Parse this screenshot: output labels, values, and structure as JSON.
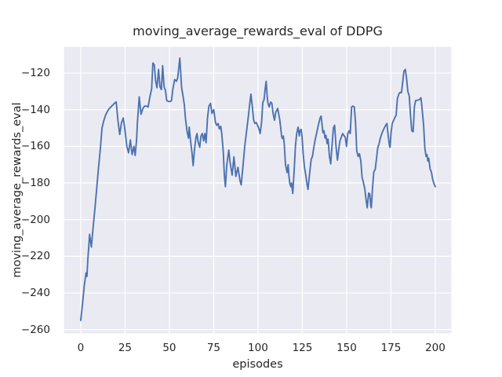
{
  "chart_data": {
    "type": "line",
    "title": "moving_average_rewards_eval of DDPG",
    "xlabel": "episodes",
    "ylabel": "moving_average_rewards_eval",
    "grid": true,
    "legend": "none",
    "plot_bg": "#eaeaf2",
    "grid_color": "#ffffff",
    "line_color": "#4c72b0",
    "text_color": "#262626",
    "xlim": [
      -9.7,
      209.3
    ],
    "ylim": [
      -262.3,
      -105.4
    ],
    "x_ticks": [
      0,
      25,
      50,
      75,
      100,
      125,
      150,
      175,
      200
    ],
    "x_tick_labels": [
      "0",
      "25",
      "50",
      "75",
      "100",
      "125",
      "150",
      "175",
      "200"
    ],
    "y_ticks": [
      -120,
      -140,
      -160,
      -180,
      -200,
      -220,
      -240,
      -260
    ],
    "y_tick_labels": [
      "−120",
      "−140",
      "−160",
      "−180",
      "−200",
      "−220",
      "−240",
      "−260"
    ],
    "series": [
      {
        "name": "moving_average_rewards_eval",
        "points": [
          [
            0,
            -255
          ],
          [
            1,
            -246
          ],
          [
            2,
            -236
          ],
          [
            3,
            -229
          ],
          [
            3.5,
            -231
          ],
          [
            4,
            -222
          ],
          [
            5,
            -208
          ],
          [
            6,
            -215
          ],
          [
            7,
            -204
          ],
          [
            8,
            -194
          ],
          [
            9,
            -183
          ],
          [
            10,
            -172
          ],
          [
            11,
            -162
          ],
          [
            12,
            -150
          ],
          [
            13,
            -146
          ],
          [
            14,
            -143
          ],
          [
            15,
            -141
          ],
          [
            16,
            -139.5
          ],
          [
            17,
            -138.5
          ],
          [
            18,
            -137.5
          ],
          [
            19,
            -136.5
          ],
          [
            20,
            -135.7
          ],
          [
            21,
            -146
          ],
          [
            22,
            -153.5
          ],
          [
            23,
            -147
          ],
          [
            24,
            -144.5
          ],
          [
            25,
            -151.5
          ],
          [
            26,
            -160
          ],
          [
            27,
            -163.5
          ],
          [
            28,
            -156.5
          ],
          [
            29,
            -164.5
          ],
          [
            30,
            -160
          ],
          [
            30.7,
            -165
          ],
          [
            31.5,
            -156.5
          ],
          [
            32,
            -146.5
          ],
          [
            33,
            -133
          ],
          [
            34,
            -142.5
          ],
          [
            35,
            -139.5
          ],
          [
            36,
            -138
          ],
          [
            37,
            -138
          ],
          [
            38,
            -138.5
          ],
          [
            39,
            -133
          ],
          [
            40,
            -128.5
          ],
          [
            40.7,
            -114.5
          ],
          [
            41.5,
            -115.5
          ],
          [
            42.2,
            -124
          ],
          [
            43,
            -128
          ],
          [
            43.9,
            -118
          ],
          [
            44.7,
            -127.5
          ],
          [
            45.5,
            -129
          ],
          [
            46.2,
            -116
          ],
          [
            47,
            -127.5
          ],
          [
            47.8,
            -129.5
          ],
          [
            48.5,
            -135
          ],
          [
            49.5,
            -135.5
          ],
          [
            50.5,
            -135.5
          ],
          [
            51.2,
            -135
          ],
          [
            52,
            -128.5
          ],
          [
            53,
            -123.5
          ],
          [
            54,
            -124.5
          ],
          [
            54.7,
            -122.5
          ],
          [
            55.9,
            -111.8
          ],
          [
            56.9,
            -128
          ],
          [
            57.7,
            -132.5
          ],
          [
            58.4,
            -137
          ],
          [
            59.1,
            -145
          ],
          [
            60,
            -152
          ],
          [
            60.8,
            -155.5
          ],
          [
            61.2,
            -149.5
          ],
          [
            62,
            -157.5
          ],
          [
            62.7,
            -163
          ],
          [
            63.4,
            -170.5
          ],
          [
            64.2,
            -161.5
          ],
          [
            65,
            -155
          ],
          [
            65.6,
            -153
          ],
          [
            66.2,
            -157.5
          ],
          [
            67.1,
            -160.5
          ],
          [
            67.8,
            -154.5
          ],
          [
            68.6,
            -153
          ],
          [
            69.3,
            -157
          ],
          [
            70,
            -153
          ],
          [
            70.7,
            -158
          ],
          [
            71.5,
            -144.5
          ],
          [
            72.3,
            -138
          ],
          [
            73.2,
            -136.5
          ],
          [
            74,
            -142
          ],
          [
            75,
            -140
          ],
          [
            76,
            -147
          ],
          [
            76.7,
            -148.5
          ],
          [
            77.5,
            -147.5
          ],
          [
            78.2,
            -150.5
          ],
          [
            79,
            -149
          ],
          [
            79.6,
            -153.5
          ],
          [
            80.4,
            -163
          ],
          [
            81,
            -175.5
          ],
          [
            81.6,
            -182
          ],
          [
            82.4,
            -170
          ],
          [
            83.5,
            -162
          ],
          [
            84.2,
            -168.5
          ],
          [
            85.4,
            -175.7
          ],
          [
            86.4,
            -165.7
          ],
          [
            87.5,
            -176.4
          ],
          [
            88.7,
            -171.4
          ],
          [
            89.8,
            -178.6
          ],
          [
            90.5,
            -181
          ],
          [
            91.5,
            -171
          ],
          [
            92.5,
            -160
          ],
          [
            93.5,
            -152
          ],
          [
            94.5,
            -144
          ],
          [
            95.3,
            -137
          ],
          [
            96,
            -131.5
          ],
          [
            96.8,
            -138.5
          ],
          [
            97.5,
            -145.5
          ],
          [
            98.2,
            -147.5
          ],
          [
            99,
            -147
          ],
          [
            99.7,
            -148.5
          ],
          [
            100.4,
            -150
          ],
          [
            101.2,
            -153
          ],
          [
            102,
            -147
          ],
          [
            102.7,
            -136
          ],
          [
            103.4,
            -134.5
          ],
          [
            104.1,
            -128
          ],
          [
            104.6,
            -124.5
          ],
          [
            105.2,
            -133
          ],
          [
            105.6,
            -136.5
          ],
          [
            106.3,
            -138.5
          ],
          [
            107.1,
            -135.8
          ],
          [
            107.8,
            -136.5
          ],
          [
            108.5,
            -142
          ],
          [
            109.3,
            -145.7
          ],
          [
            110,
            -141.4
          ],
          [
            111.1,
            -139.3
          ],
          [
            112.3,
            -145.7
          ],
          [
            113.3,
            -154.3
          ],
          [
            113.7,
            -155.7
          ],
          [
            114.3,
            -154.3
          ],
          [
            114.8,
            -158.6
          ],
          [
            115.5,
            -170
          ],
          [
            116.4,
            -174.3
          ],
          [
            117,
            -170
          ],
          [
            117.4,
            -175.7
          ],
          [
            117.9,
            -180
          ],
          [
            118.5,
            -182
          ],
          [
            118.9,
            -180
          ],
          [
            119.6,
            -185.7
          ],
          [
            120.4,
            -173
          ],
          [
            121.1,
            -160
          ],
          [
            121.8,
            -153
          ],
          [
            122.6,
            -149.5
          ],
          [
            123.3,
            -154.3
          ],
          [
            123.7,
            -151.4
          ],
          [
            124.3,
            -150.7
          ],
          [
            124.8,
            -154.3
          ],
          [
            125.5,
            -164.3
          ],
          [
            126.2,
            -171.4
          ],
          [
            127,
            -176
          ],
          [
            127.7,
            -181
          ],
          [
            128.2,
            -183.5
          ],
          [
            129.2,
            -174
          ],
          [
            130,
            -167
          ],
          [
            130.7,
            -165.5
          ],
          [
            131.4,
            -161
          ],
          [
            132.1,
            -157
          ],
          [
            133,
            -153
          ],
          [
            134,
            -148.5
          ],
          [
            135,
            -144.5
          ],
          [
            135.6,
            -143.5
          ],
          [
            136.6,
            -152.5
          ],
          [
            137.2,
            -151.5
          ],
          [
            137.8,
            -155.5
          ],
          [
            138.3,
            -154
          ],
          [
            139,
            -158.5
          ],
          [
            139.5,
            -156
          ],
          [
            140.3,
            -165.5
          ],
          [
            141,
            -169.5
          ],
          [
            141.7,
            -160
          ],
          [
            142.5,
            -150
          ],
          [
            143.2,
            -148.5
          ],
          [
            144,
            -160
          ],
          [
            144.8,
            -167.5
          ],
          [
            145.5,
            -162
          ],
          [
            146.2,
            -157
          ],
          [
            147,
            -155
          ],
          [
            147.7,
            -153
          ],
          [
            148.4,
            -154
          ],
          [
            149.2,
            -155
          ],
          [
            149.9,
            -160
          ],
          [
            150.6,
            -153
          ],
          [
            151.4,
            -151.5
          ],
          [
            152,
            -153
          ],
          [
            152.8,
            -138.5
          ],
          [
            153.5,
            -138
          ],
          [
            154.3,
            -138.5
          ],
          [
            155,
            -147
          ],
          [
            155.7,
            -162.5
          ],
          [
            156.5,
            -165.5
          ],
          [
            157.2,
            -164
          ],
          [
            158,
            -168
          ],
          [
            158.7,
            -177
          ],
          [
            159.4,
            -179.5
          ],
          [
            160.2,
            -183
          ],
          [
            161,
            -189.5
          ],
          [
            161.6,
            -193.5
          ],
          [
            162.4,
            -185.5
          ],
          [
            163,
            -186
          ],
          [
            163.6,
            -192.5
          ],
          [
            163.9,
            -193.5
          ],
          [
            164.6,
            -182.5
          ],
          [
            165.3,
            -174
          ],
          [
            166.1,
            -172.5
          ],
          [
            166.8,
            -167
          ],
          [
            167.5,
            -161
          ],
          [
            168.3,
            -158.5
          ],
          [
            169,
            -155.5
          ],
          [
            169.8,
            -153
          ],
          [
            170.5,
            -151.5
          ],
          [
            171.2,
            -150
          ],
          [
            172,
            -148.5
          ],
          [
            172.7,
            -147.5
          ],
          [
            173.4,
            -154
          ],
          [
            174.2,
            -160
          ],
          [
            174.5,
            -160.5
          ],
          [
            175,
            -153
          ],
          [
            175.7,
            -147.5
          ],
          [
            176.4,
            -146
          ],
          [
            177.1,
            -144.5
          ],
          [
            177.9,
            -143
          ],
          [
            178.6,
            -134
          ],
          [
            179.4,
            -131.5
          ],
          [
            180.1,
            -130.5
          ],
          [
            180.9,
            -130.7
          ],
          [
            181.6,
            -125
          ],
          [
            182.3,
            -119
          ],
          [
            183.1,
            -118
          ],
          [
            183.8,
            -123
          ],
          [
            184.5,
            -130
          ],
          [
            185.3,
            -132.5
          ],
          [
            186,
            -143
          ],
          [
            186.7,
            -151.5
          ],
          [
            187.5,
            -152
          ],
          [
            188.2,
            -138.5
          ],
          [
            188.9,
            -135
          ],
          [
            190,
            -134.8
          ],
          [
            191,
            -134.5
          ],
          [
            191.9,
            -133.5
          ],
          [
            192.6,
            -140
          ],
          [
            193.4,
            -148.5
          ],
          [
            194.1,
            -161
          ],
          [
            194.8,
            -165.5
          ],
          [
            195.3,
            -164.5
          ],
          [
            195.8,
            -168
          ],
          [
            196.3,
            -166.5
          ],
          [
            197.1,
            -172.5
          ],
          [
            197.8,
            -174
          ],
          [
            198.5,
            -178
          ],
          [
            199.3,
            -180.5
          ],
          [
            200,
            -182
          ]
        ]
      }
    ]
  }
}
